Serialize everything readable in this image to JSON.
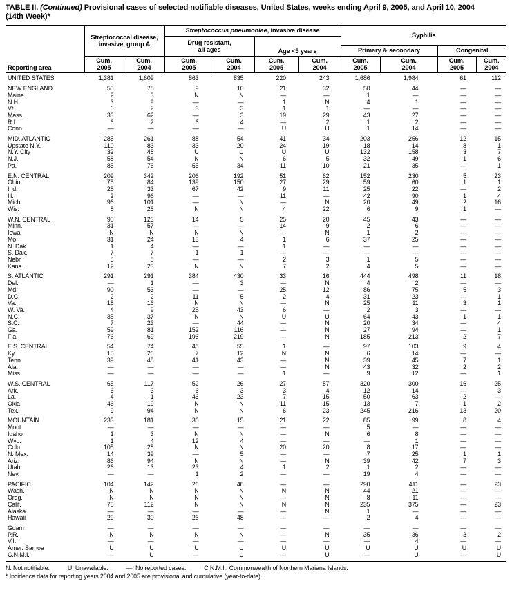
{
  "title": {
    "prefix": "TABLE II.",
    "continued": " (Continued) ",
    "body": "Provisional cases of selected notifiable diseases, United States, weeks ending April 9, 2005, and April 10, 2004 (14th Week)*"
  },
  "header": {
    "reporting_area": "Reporting area",
    "strep_a_line1": "Streptococcal disease,",
    "strep_a_line2": "invasive, group A",
    "pneumoniae_italic": "Streptococcus pneumoniae",
    "pneumoniae_rest": ", invasive disease",
    "drug_resistant_line1": "Drug resistant,",
    "drug_resistant_line2": "all ages",
    "age_under5": "Age <5 years",
    "syphilis": "Syphilis",
    "primary_secondary": "Primary & secondary",
    "congenital": "Congenital",
    "cum_label": "Cum.",
    "col_years": [
      "2005",
      "2004",
      "2005",
      "2004",
      "2005",
      "2004",
      "2005",
      "2004",
      "2005",
      "2004"
    ]
  },
  "sections": [
    {
      "rows": [
        {
          "area": "UNITED STATES",
          "v": [
            "1,381",
            "1,609",
            "863",
            "835",
            "220",
            "243",
            "1,686",
            "1,984",
            "61",
            "112"
          ]
        }
      ]
    },
    {
      "rows": [
        {
          "area": "NEW ENGLAND",
          "v": [
            "50",
            "78",
            "9",
            "10",
            "21",
            "32",
            "50",
            "44",
            "—",
            "—"
          ]
        },
        {
          "area": "Maine",
          "v": [
            "2",
            "3",
            "N",
            "N",
            "—",
            "—",
            "1",
            "—",
            "—",
            "—"
          ]
        },
        {
          "area": "N.H.",
          "v": [
            "3",
            "9",
            "—",
            "—",
            "1",
            "N",
            "4",
            "1",
            "—",
            "—"
          ]
        },
        {
          "area": "Vt.",
          "v": [
            "6",
            "2",
            "3",
            "3",
            "1",
            "1",
            "—",
            "—",
            "—",
            "—"
          ]
        },
        {
          "area": "Mass.",
          "v": [
            "33",
            "62",
            "—",
            "3",
            "19",
            "29",
            "43",
            "27",
            "—",
            "—"
          ]
        },
        {
          "area": "R.I.",
          "v": [
            "6",
            "2",
            "6",
            "4",
            "—",
            "2",
            "1",
            "2",
            "—",
            "—"
          ]
        },
        {
          "area": "Conn.",
          "v": [
            "—",
            "—",
            "—",
            "—",
            "U",
            "U",
            "1",
            "14",
            "—",
            "—"
          ]
        }
      ]
    },
    {
      "rows": [
        {
          "area": "MID. ATLANTIC",
          "v": [
            "285",
            "261",
            "88",
            "54",
            "41",
            "34",
            "203",
            "256",
            "12",
            "15"
          ]
        },
        {
          "area": "Upstate N.Y.",
          "v": [
            "110",
            "83",
            "33",
            "20",
            "24",
            "19",
            "18",
            "14",
            "8",
            "1"
          ]
        },
        {
          "area": "N.Y. City",
          "v": [
            "32",
            "48",
            "U",
            "U",
            "U",
            "U",
            "132",
            "158",
            "3",
            "7"
          ]
        },
        {
          "area": "N.J.",
          "v": [
            "58",
            "54",
            "N",
            "N",
            "6",
            "5",
            "32",
            "49",
            "1",
            "6"
          ]
        },
        {
          "area": "Pa.",
          "v": [
            "85",
            "76",
            "55",
            "34",
            "11",
            "10",
            "21",
            "35",
            "—",
            "1"
          ]
        }
      ]
    },
    {
      "rows": [
        {
          "area": "E.N. CENTRAL",
          "v": [
            "209",
            "342",
            "206",
            "192",
            "51",
            "62",
            "152",
            "230",
            "5",
            "23"
          ]
        },
        {
          "area": "Ohio",
          "v": [
            "75",
            "84",
            "139",
            "150",
            "27",
            "29",
            "59",
            "60",
            "1",
            "1"
          ]
        },
        {
          "area": "Ind.",
          "v": [
            "28",
            "33",
            "67",
            "42",
            "9",
            "11",
            "25",
            "22",
            "—",
            "2"
          ]
        },
        {
          "area": "Ill.",
          "v": [
            "2",
            "96",
            "—",
            "—",
            "11",
            "—",
            "42",
            "90",
            "1",
            "4"
          ]
        },
        {
          "area": "Mich.",
          "v": [
            "96",
            "101",
            "—",
            "N",
            "—",
            "N",
            "20",
            "49",
            "2",
            "16"
          ]
        },
        {
          "area": "Wis.",
          "v": [
            "8",
            "28",
            "N",
            "N",
            "4",
            "22",
            "6",
            "9",
            "1",
            "—"
          ]
        }
      ]
    },
    {
      "rows": [
        {
          "area": "W.N. CENTRAL",
          "v": [
            "90",
            "123",
            "14",
            "5",
            "25",
            "20",
            "45",
            "43",
            "—",
            "—"
          ]
        },
        {
          "area": "Minn.",
          "v": [
            "31",
            "57",
            "—",
            "—",
            "14",
            "9",
            "2",
            "6",
            "—",
            "—"
          ]
        },
        {
          "area": "Iowa",
          "v": [
            "N",
            "N",
            "N",
            "N",
            "—",
            "N",
            "1",
            "2",
            "—",
            "—"
          ]
        },
        {
          "area": "Mo.",
          "v": [
            "31",
            "24",
            "13",
            "4",
            "1",
            "6",
            "37",
            "25",
            "—",
            "—"
          ]
        },
        {
          "area": "N. Dak.",
          "v": [
            "1",
            "4",
            "—",
            "—",
            "1",
            "—",
            "—",
            "—",
            "—",
            "—"
          ]
        },
        {
          "area": "S. Dak.",
          "v": [
            "7",
            "7",
            "1",
            "1",
            "—",
            "—",
            "—",
            "—",
            "—",
            "—"
          ]
        },
        {
          "area": "Nebr.",
          "v": [
            "8",
            "8",
            "—",
            "—",
            "2",
            "3",
            "1",
            "5",
            "—",
            "—"
          ]
        },
        {
          "area": "Kans.",
          "v": [
            "12",
            "23",
            "N",
            "N",
            "7",
            "2",
            "4",
            "5",
            "—",
            "—"
          ]
        }
      ]
    },
    {
      "rows": [
        {
          "area": "S. ATLANTIC",
          "v": [
            "291",
            "291",
            "384",
            "430",
            "33",
            "16",
            "444",
            "498",
            "11",
            "18"
          ]
        },
        {
          "area": "Del.",
          "v": [
            "—",
            "1",
            "—",
            "3",
            "—",
            "N",
            "4",
            "2",
            "—",
            "—"
          ]
        },
        {
          "area": "Md.",
          "v": [
            "90",
            "53",
            "—",
            "—",
            "25",
            "12",
            "86",
            "75",
            "5",
            "3"
          ]
        },
        {
          "area": "D.C.",
          "v": [
            "2",
            "2",
            "11",
            "5",
            "2",
            "4",
            "31",
            "23",
            "—",
            "1"
          ]
        },
        {
          "area": "Va.",
          "v": [
            "18",
            "16",
            "N",
            "N",
            "—",
            "N",
            "25",
            "11",
            "3",
            "1"
          ]
        },
        {
          "area": "W. Va.",
          "v": [
            "4",
            "9",
            "25",
            "43",
            "6",
            "—",
            "2",
            "3",
            "—",
            "—"
          ]
        },
        {
          "area": "N.C.",
          "v": [
            "35",
            "37",
            "N",
            "N",
            "U",
            "U",
            "64",
            "43",
            "1",
            "1"
          ]
        },
        {
          "area": "S.C.",
          "v": [
            "7",
            "23",
            "—",
            "44",
            "—",
            "N",
            "20",
            "34",
            "—",
            "4"
          ]
        },
        {
          "area": "Ga.",
          "v": [
            "59",
            "81",
            "152",
            "116",
            "—",
            "N",
            "27",
            "94",
            "—",
            "1"
          ]
        },
        {
          "area": "Fla.",
          "v": [
            "76",
            "69",
            "196",
            "219",
            "—",
            "N",
            "185",
            "213",
            "2",
            "7"
          ]
        }
      ]
    },
    {
      "rows": [
        {
          "area": "E.S. CENTRAL",
          "v": [
            "54",
            "74",
            "48",
            "55",
            "1",
            "—",
            "97",
            "103",
            "9",
            "4"
          ]
        },
        {
          "area": "Ky.",
          "v": [
            "15",
            "26",
            "7",
            "12",
            "N",
            "N",
            "6",
            "14",
            "—",
            "—"
          ]
        },
        {
          "area": "Tenn.",
          "v": [
            "39",
            "48",
            "41",
            "43",
            "—",
            "N",
            "39",
            "45",
            "7",
            "1"
          ]
        },
        {
          "area": "Ala.",
          "v": [
            "—",
            "—",
            "—",
            "—",
            "—",
            "N",
            "43",
            "32",
            "2",
            "2"
          ]
        },
        {
          "area": "Miss.",
          "v": [
            "—",
            "—",
            "—",
            "—",
            "1",
            "—",
            "9",
            "12",
            "—",
            "1"
          ]
        }
      ]
    },
    {
      "rows": [
        {
          "area": "W.S. CENTRAL",
          "v": [
            "65",
            "117",
            "52",
            "26",
            "27",
            "57",
            "320",
            "300",
            "16",
            "25"
          ]
        },
        {
          "area": "Ark.",
          "v": [
            "6",
            "3",
            "6",
            "3",
            "3",
            "4",
            "12",
            "14",
            "—",
            "3"
          ]
        },
        {
          "area": "La.",
          "v": [
            "4",
            "1",
            "46",
            "23",
            "7",
            "15",
            "50",
            "63",
            "2",
            "—"
          ]
        },
        {
          "area": "Okla.",
          "v": [
            "46",
            "19",
            "N",
            "N",
            "11",
            "15",
            "13",
            "7",
            "1",
            "2"
          ]
        },
        {
          "area": "Tex.",
          "v": [
            "9",
            "94",
            "N",
            "N",
            "6",
            "23",
            "245",
            "216",
            "13",
            "20"
          ]
        }
      ]
    },
    {
      "rows": [
        {
          "area": "MOUNTAIN",
          "v": [
            "233",
            "181",
            "36",
            "15",
            "21",
            "22",
            "85",
            "99",
            "8",
            "4"
          ]
        },
        {
          "area": "Mont.",
          "v": [
            "—",
            "—",
            "—",
            "—",
            "—",
            "—",
            "5",
            "—",
            "—",
            "—"
          ]
        },
        {
          "area": "Idaho",
          "v": [
            "1",
            "3",
            "N",
            "N",
            "—",
            "N",
            "6",
            "8",
            "—",
            "—"
          ]
        },
        {
          "area": "Wyo.",
          "v": [
            "1",
            "4",
            "12",
            "4",
            "—",
            "—",
            "—",
            "1",
            "—",
            "—"
          ]
        },
        {
          "area": "Colo.",
          "v": [
            "105",
            "28",
            "N",
            "N",
            "20",
            "20",
            "8",
            "17",
            "—",
            "—"
          ]
        },
        {
          "area": "N. Mex.",
          "v": [
            "14",
            "39",
            "—",
            "5",
            "—",
            "—",
            "7",
            "25",
            "1",
            "1"
          ]
        },
        {
          "area": "Ariz.",
          "v": [
            "86",
            "94",
            "N",
            "N",
            "—",
            "N",
            "39",
            "42",
            "7",
            "3"
          ]
        },
        {
          "area": "Utah",
          "v": [
            "26",
            "13",
            "23",
            "4",
            "1",
            "2",
            "1",
            "2",
            "—",
            "—"
          ]
        },
        {
          "area": "Nev.",
          "v": [
            "—",
            "—",
            "1",
            "2",
            "—",
            "—",
            "19",
            "4",
            "—",
            "—"
          ]
        }
      ]
    },
    {
      "rows": [
        {
          "area": "PACIFIC",
          "v": [
            "104",
            "142",
            "26",
            "48",
            "—",
            "—",
            "290",
            "411",
            "—",
            "23"
          ]
        },
        {
          "area": "Wash.",
          "v": [
            "N",
            "N",
            "N",
            "N",
            "N",
            "N",
            "44",
            "21",
            "—",
            "—"
          ]
        },
        {
          "area": "Oreg.",
          "v": [
            "N",
            "N",
            "N",
            "N",
            "—",
            "N",
            "8",
            "11",
            "—",
            "—"
          ]
        },
        {
          "area": "Calif.",
          "v": [
            "75",
            "112",
            "N",
            "N",
            "N",
            "N",
            "235",
            "375",
            "—",
            "23"
          ]
        },
        {
          "area": "Alaska",
          "v": [
            "—",
            "—",
            "—",
            "—",
            "—",
            "N",
            "1",
            "—",
            "—",
            "—"
          ]
        },
        {
          "area": "Hawaii",
          "v": [
            "29",
            "30",
            "26",
            "48",
            "—",
            "—",
            "2",
            "4",
            "—",
            "—"
          ]
        }
      ]
    },
    {
      "rows": [
        {
          "area": "Guam",
          "v": [
            "—",
            "—",
            "—",
            "—",
            "—",
            "—",
            "—",
            "—",
            "—",
            "—"
          ]
        },
        {
          "area": "P.R.",
          "v": [
            "N",
            "N",
            "N",
            "N",
            "—",
            "N",
            "35",
            "36",
            "3",
            "2"
          ]
        },
        {
          "area": "V.I.",
          "v": [
            "—",
            "—",
            "—",
            "—",
            "—",
            "—",
            "—",
            "4",
            "—",
            "—"
          ]
        },
        {
          "area": "Amer. Samoa",
          "v": [
            "U",
            "U",
            "U",
            "U",
            "U",
            "U",
            "U",
            "U",
            "U",
            "U"
          ]
        },
        {
          "area": "C.N.M.I.",
          "v": [
            "—",
            "U",
            "—",
            "U",
            "—",
            "U",
            "—",
            "U",
            "—",
            "U"
          ]
        }
      ]
    }
  ],
  "footnotes": {
    "legend": [
      "N: Not notifiable.",
      "U: Unavailable.",
      "—: No reported cases.",
      "C.N.M.I.: Commonwealth of Northern Mariana Islands."
    ],
    "asterisk": "* Incidence data for reporting years 2004 and 2005 are provisional and cumulative (year-to-date)."
  }
}
